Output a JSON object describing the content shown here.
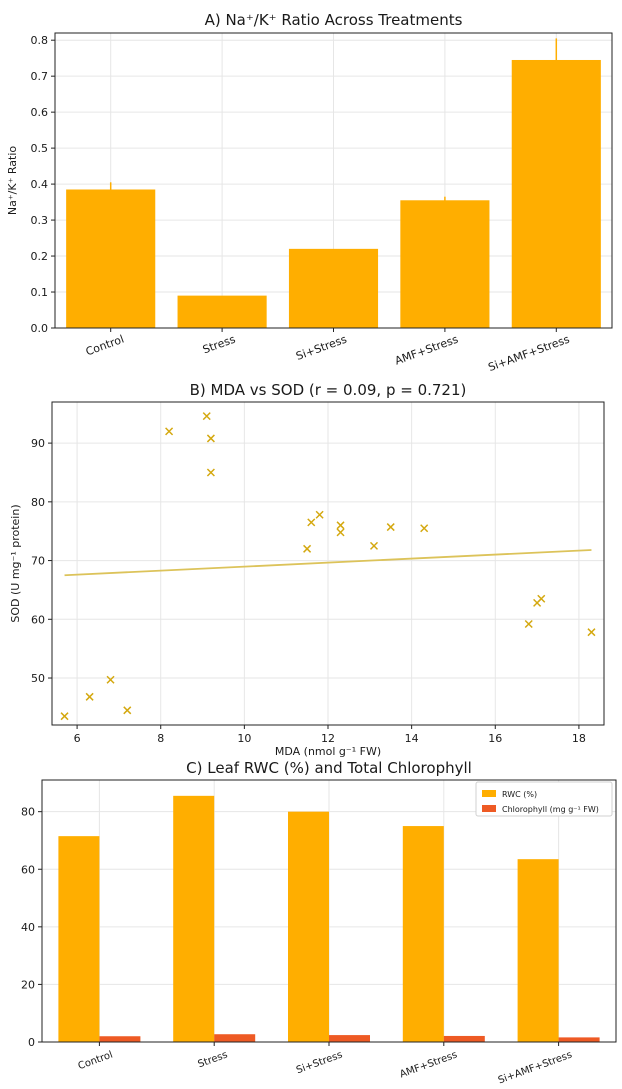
{
  "colors": {
    "bar": "#FFAE00",
    "rwc": "#FFAE00",
    "chlorophyll": "#EE5A24",
    "scatter": "#D4A80F",
    "fit": "#DCC35A"
  },
  "chart_data": [
    {
      "type": "bar",
      "title": "A) Na⁺/K⁺ Ratio Across Treatments",
      "xlabel": "",
      "ylabel": "Na⁺/K⁺ Ratio",
      "categories": [
        "Control",
        "Stress",
        "Si+Stress",
        "AMF+Stress",
        "Si+AMF+Stress"
      ],
      "values": [
        0.385,
        0.09,
        0.22,
        0.355,
        0.745
      ],
      "errors": [
        0.02,
        0.0,
        0.0,
        0.01,
        0.06
      ],
      "ylim": [
        0,
        0.82
      ],
      "yticks": [
        0.0,
        0.1,
        0.2,
        0.3,
        0.4,
        0.5,
        0.6,
        0.7,
        0.8
      ],
      "ytick_labels": [
        "0.0",
        "0.1",
        "0.2",
        "0.3",
        "0.4",
        "0.5",
        "0.6",
        "0.7",
        "0.8"
      ],
      "grid": true
    },
    {
      "type": "scatter",
      "title": "B) MDA vs SOD (r = 0.09, p = 0.721)",
      "xlabel": "MDA (nmol g⁻¹ FW)",
      "ylabel": "SOD (U mg⁻¹ protein)",
      "xlim": [
        5.4,
        18.6
      ],
      "ylim": [
        42,
        97
      ],
      "xticks": [
        6,
        8,
        10,
        12,
        14,
        16,
        18
      ],
      "xtick_labels": [
        "6",
        "8",
        "10",
        "12",
        "14",
        "16",
        "18"
      ],
      "yticks": [
        50,
        60,
        70,
        80,
        90
      ],
      "ytick_labels": [
        "50",
        "60",
        "70",
        "80",
        "90"
      ],
      "points": [
        {
          "x": 5.7,
          "y": 43.5
        },
        {
          "x": 6.3,
          "y": 46.8
        },
        {
          "x": 6.8,
          "y": 49.7
        },
        {
          "x": 7.2,
          "y": 44.5
        },
        {
          "x": 8.2,
          "y": 92.0
        },
        {
          "x": 9.1,
          "y": 94.6
        },
        {
          "x": 9.2,
          "y": 90.8
        },
        {
          "x": 9.2,
          "y": 85.0
        },
        {
          "x": 11.5,
          "y": 72.0
        },
        {
          "x": 11.6,
          "y": 76.5
        },
        {
          "x": 11.8,
          "y": 77.8
        },
        {
          "x": 12.3,
          "y": 76.0
        },
        {
          "x": 12.3,
          "y": 74.8
        },
        {
          "x": 13.1,
          "y": 72.5
        },
        {
          "x": 13.5,
          "y": 75.7
        },
        {
          "x": 14.3,
          "y": 75.5
        },
        {
          "x": 16.8,
          "y": 59.2
        },
        {
          "x": 17.0,
          "y": 62.8
        },
        {
          "x": 17.1,
          "y": 63.5
        },
        {
          "x": 18.3,
          "y": 57.8
        }
      ],
      "fit_line": {
        "x": [
          5.7,
          18.3
        ],
        "y": [
          67.5,
          71.8
        ]
      },
      "grid": true
    },
    {
      "type": "bar",
      "title": "C) Leaf RWC (%) and Total Chlorophyll",
      "xlabel": "",
      "ylabel": "",
      "categories": [
        "Control",
        "Stress",
        "Si+Stress",
        "AMF+Stress",
        "Si+AMF+Stress"
      ],
      "series": [
        {
          "name": "RWC (%)",
          "values": [
            71.5,
            85.5,
            80.0,
            75.0,
            63.5
          ]
        },
        {
          "name": "Chlorophyll (mg g⁻¹ FW)",
          "values": [
            2.0,
            2.7,
            2.4,
            2.1,
            1.6
          ]
        }
      ],
      "ylim": [
        0,
        91
      ],
      "yticks": [
        0,
        20,
        40,
        60,
        80
      ],
      "ytick_labels": [
        "0",
        "20",
        "40",
        "60",
        "80"
      ],
      "legend_position": "top-right",
      "grid": true
    }
  ]
}
